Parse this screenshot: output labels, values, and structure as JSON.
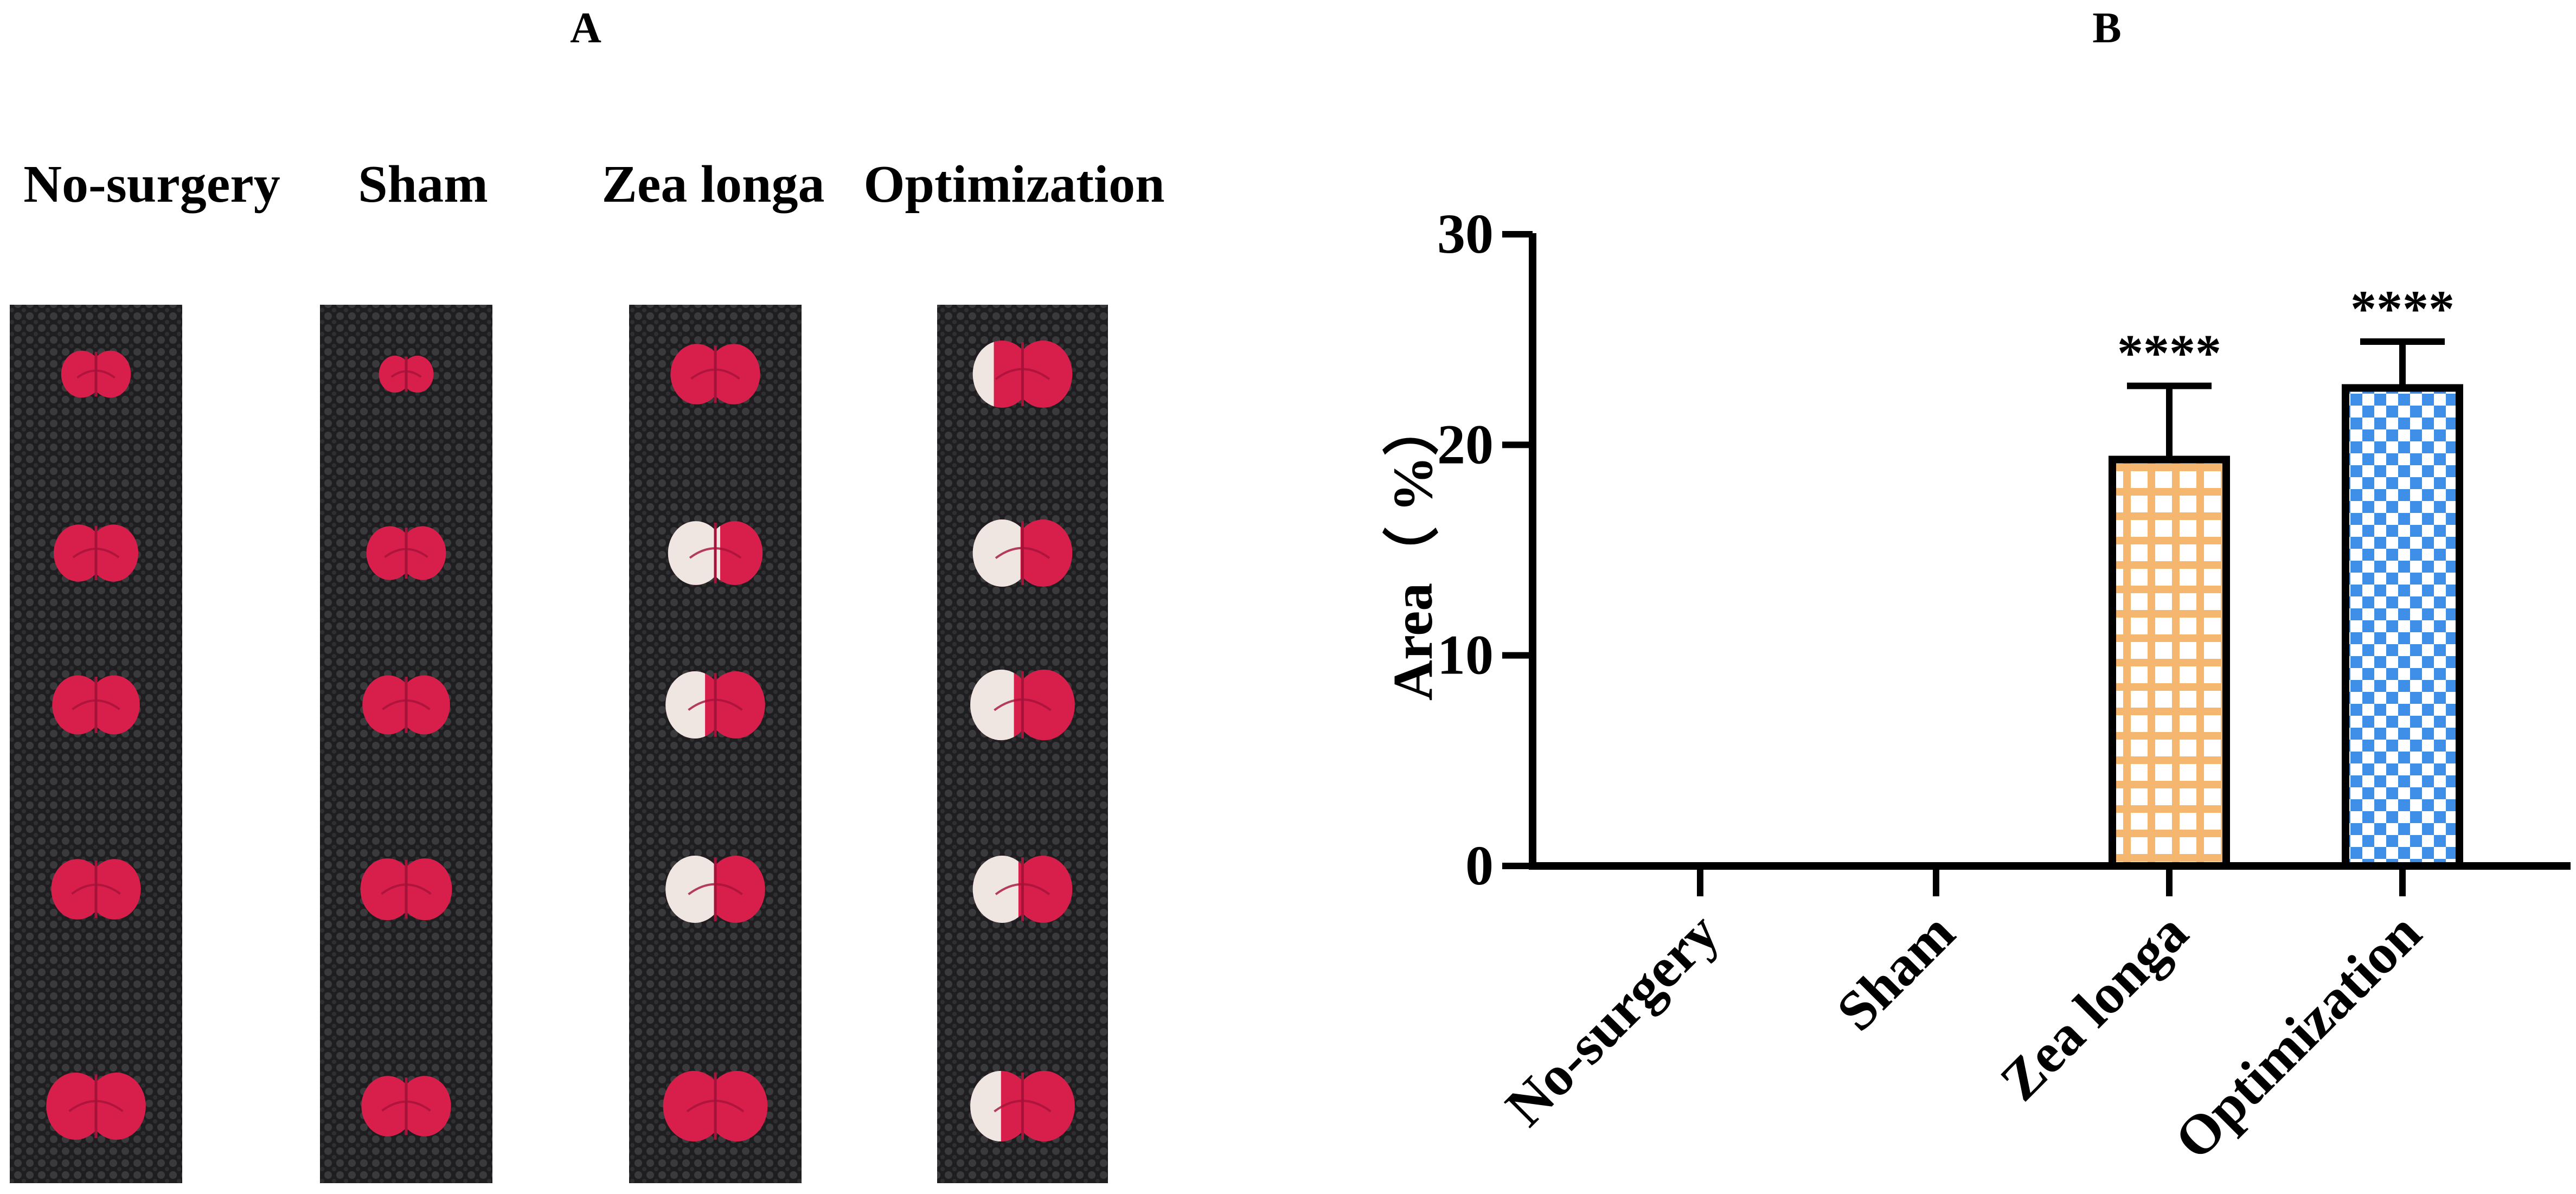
{
  "panels": {
    "A": "A",
    "B": "B"
  },
  "photo_panel": {
    "groups": [
      {
        "label": "No-surgery",
        "slices": [
          {
            "infarct": 0,
            "size": 0.7
          },
          {
            "infarct": 0,
            "size": 0.85
          },
          {
            "infarct": 0,
            "size": 0.88
          },
          {
            "infarct": 0,
            "size": 0.9
          },
          {
            "infarct": 0,
            "size": 1.0
          }
        ]
      },
      {
        "label": "Sham",
        "slices": [
          {
            "infarct": 0,
            "size": 0.55
          },
          {
            "infarct": 0,
            "size": 0.8
          },
          {
            "infarct": 0,
            "size": 0.88
          },
          {
            "infarct": 0,
            "size": 0.92
          },
          {
            "infarct": 0,
            "size": 0.9
          }
        ]
      },
      {
        "label": "Zea longa",
        "slices": [
          {
            "infarct": 0,
            "size": 0.9
          },
          {
            "infarct": 0.55,
            "size": 0.95
          },
          {
            "infarct": 0.4,
            "size": 1.0
          },
          {
            "infarct": 0.5,
            "size": 1.0
          },
          {
            "infarct": 0,
            "size": 1.05
          }
        ]
      },
      {
        "label": "Optimization",
        "slices": [
          {
            "infarct": 0.22,
            "size": 1.0
          },
          {
            "infarct": 0.48,
            "size": 1.0
          },
          {
            "infarct": 0.42,
            "size": 1.05
          },
          {
            "infarct": 0.46,
            "size": 1.0
          },
          {
            "infarct": 0.3,
            "size": 1.05
          }
        ]
      }
    ],
    "colors": {
      "tissue": "#d81e4a",
      "tissue_dark": "#a5123a",
      "infarct": "#efe6e2",
      "mesh": "#2b2b2d"
    }
  },
  "chart_data": {
    "type": "bar",
    "categories": [
      "No-surgery",
      "Sham",
      "Zea longa",
      "Optimization"
    ],
    "values": [
      0,
      0,
      19.3,
      22.7
    ],
    "errors": [
      0,
      0,
      3.5,
      2.2
    ],
    "significance": [
      "",
      "",
      "****",
      "****"
    ],
    "ylabel": "Area（ %）",
    "ylim": [
      0,
      30
    ],
    "yticks": [
      0,
      10,
      20,
      30
    ],
    "bar_colors": [
      "#f5b66f",
      "#f5b66f",
      "#f5b66f",
      "#3f8fe8"
    ],
    "bar_patterns": [
      "grid",
      "grid",
      "grid",
      "checker"
    ]
  }
}
